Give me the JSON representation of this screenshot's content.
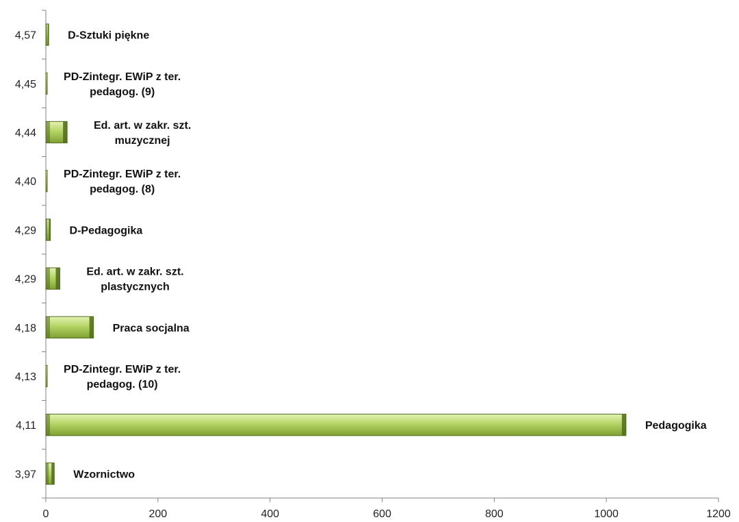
{
  "chart_data": {
    "type": "bar",
    "orientation": "horizontal",
    "title": "",
    "xlabel": "",
    "ylabel": "",
    "xlim": [
      0,
      1200
    ],
    "x_ticks": [
      0,
      200,
      400,
      600,
      800,
      1000,
      1200
    ],
    "grid": false,
    "legend": "none",
    "categories": [
      "4,57",
      "4,45",
      "4,44",
      "4,40",
      "4,29",
      "4,29",
      "4,18",
      "4,13",
      "4,11",
      "3,97"
    ],
    "bar_labels": [
      [
        "D-Sztuki piękne"
      ],
      [
        "PD-Zintegr. EWiP z ter.",
        "pedagog. (9)"
      ],
      [
        "Ed.  art. w zakr. szt.",
        "muzycznej"
      ],
      [
        "PD-Zintegr. EWiP z ter.",
        "pedagog. (8)"
      ],
      [
        "D-Pedagogika"
      ],
      [
        "Ed. art. w zakr.  szt.",
        "plastycznych"
      ],
      [
        "Praca socjalna"
      ],
      [
        "PD-Zintegr. EWiP z ter.",
        "pedagog. (10)"
      ],
      [
        "Pedagogika"
      ],
      [
        "Wzornictwo"
      ]
    ],
    "values": [
      5,
      2,
      38,
      2,
      8,
      25,
      85,
      2,
      1035,
      15
    ],
    "colors": {
      "bar_light": "#c9e08a",
      "bar_mid": "#9cc24c",
      "bar_dark": "#4f6b1c",
      "axis": "#808080"
    }
  }
}
